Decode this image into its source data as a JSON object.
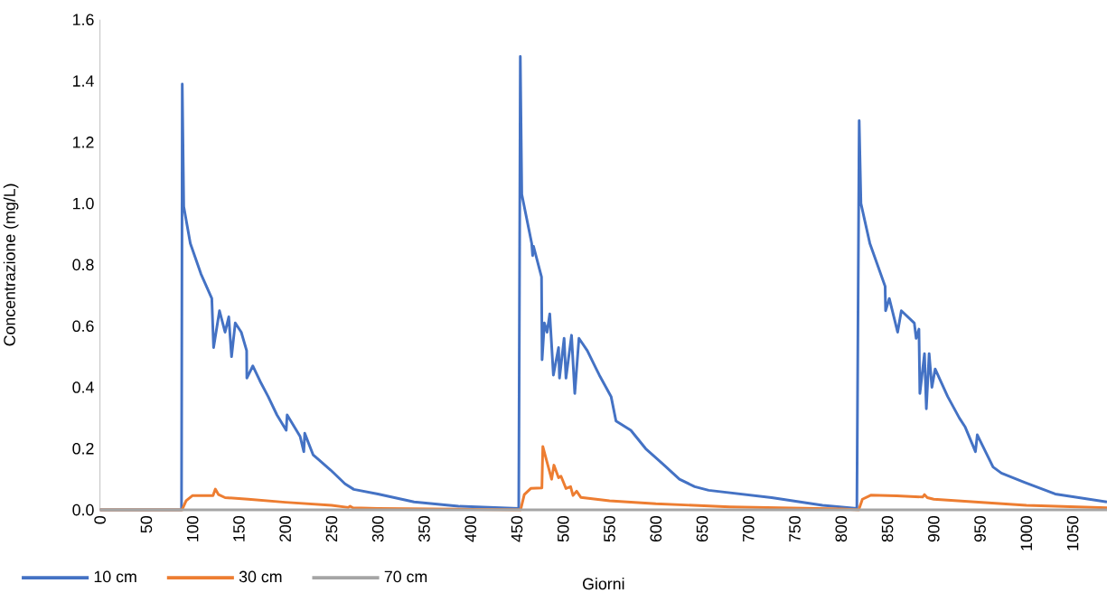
{
  "chart_data": {
    "type": "line",
    "xlabel": "Giorni",
    "ylabel": "Concentrazione (mg/L)",
    "xlim": [
      0,
      1087
    ],
    "ylim": [
      0,
      1.6
    ],
    "xticks": [
      0,
      50,
      100,
      150,
      200,
      250,
      300,
      350,
      400,
      450,
      500,
      550,
      600,
      650,
      700,
      750,
      800,
      850,
      900,
      950,
      1000,
      1050
    ],
    "yticks": [
      {
        "value": 0,
        "label": "0.0"
      },
      {
        "value": 0.2,
        "label": "0.2"
      },
      {
        "value": 0.4,
        "label": "0.4"
      },
      {
        "value": 0.6,
        "label": "0.6"
      },
      {
        "value": 0.8,
        "label": "0.8"
      },
      {
        "value": 1.0,
        "label": "1.0"
      },
      {
        "value": 1.2,
        "label": "1.2"
      },
      {
        "value": 1.4,
        "label": "1.4"
      },
      {
        "value": 1.6,
        "label": "1.6"
      }
    ],
    "grid": false,
    "legend": "bottom left",
    "line_style": "solid",
    "series": [
      {
        "name": "10 cm",
        "color": "#4472c4",
        "x": [
          0,
          88,
          88.8,
          90.4,
          97.5,
          109,
          120.7,
          122.6,
          129,
          135,
          139,
          142,
          146,
          152.5,
          158.3,
          158.5,
          165,
          172.8,
          181.5,
          191,
          201,
          202,
          216,
          220,
          221,
          230,
          249,
          264.5,
          274,
          300,
          339,
          387,
          452,
          453.7,
          455.3,
          466,
          467,
          468,
          476.6,
          477.2,
          479.7,
          482.6,
          485.5,
          489.4,
          495,
          496,
          501,
          503,
          509,
          512.5,
          517,
          526,
          535.7,
          539,
          551.7,
          557,
          573,
          589,
          609,
          625.5,
          642,
          657,
          725,
          780,
          817,
          819.5,
          821.4,
          831,
          847.5,
          848,
          852,
          861,
          865,
          879,
          881,
          884,
          885,
          890,
          892,
          895,
          898,
          901.5,
          915,
          927.6,
          934,
          945,
          947,
          964,
          973,
          998,
          1031,
          1087
        ],
        "values": [
          0,
          0,
          1.39,
          0.99,
          0.87,
          0.77,
          0.69,
          0.53,
          0.65,
          0.58,
          0.63,
          0.5,
          0.61,
          0.58,
          0.52,
          0.43,
          0.47,
          0.42,
          0.37,
          0.31,
          0.26,
          0.31,
          0.24,
          0.19,
          0.25,
          0.18,
          0.13,
          0.085,
          0.067,
          0.052,
          0.026,
          0.012,
          0.005,
          1.48,
          1.03,
          0.87,
          0.83,
          0.86,
          0.76,
          0.49,
          0.61,
          0.58,
          0.64,
          0.44,
          0.53,
          0.43,
          0.56,
          0.43,
          0.57,
          0.38,
          0.56,
          0.52,
          0.46,
          0.44,
          0.37,
          0.29,
          0.26,
          0.2,
          0.146,
          0.1,
          0.076,
          0.064,
          0.04,
          0.015,
          0.005,
          1.27,
          1.0,
          0.87,
          0.73,
          0.65,
          0.69,
          0.58,
          0.65,
          0.61,
          0.56,
          0.59,
          0.38,
          0.51,
          0.33,
          0.51,
          0.4,
          0.46,
          0.37,
          0.3,
          0.27,
          0.19,
          0.245,
          0.14,
          0.12,
          0.09,
          0.052,
          0.026
        ]
      },
      {
        "name": "30 cm",
        "color": "#ed7d31",
        "x": [
          0,
          88.5,
          93,
          100,
          122,
          124.5,
          128,
          135,
          160,
          200,
          250,
          268,
          270,
          273,
          300,
          400,
          454,
          458,
          465,
          477,
          478,
          487.5,
          490,
          495,
          497.6,
          503,
          508,
          510.6,
          514.5,
          519,
          550,
          600,
          680,
          800,
          819,
          823,
          832,
          860,
          880,
          888,
          890,
          893,
          900,
          950,
          1000,
          1087
        ],
        "values": [
          0,
          0,
          0.03,
          0.047,
          0.047,
          0.068,
          0.05,
          0.04,
          0.035,
          0.025,
          0.015,
          0.008,
          0.012,
          0.007,
          0.005,
          0.002,
          0,
          0.05,
          0.07,
          0.072,
          0.207,
          0.1,
          0.146,
          0.105,
          0.11,
          0.07,
          0.076,
          0.047,
          0.061,
          0.041,
          0.03,
          0.02,
          0.01,
          0.003,
          0,
          0.035,
          0.048,
          0.046,
          0.043,
          0.042,
          0.05,
          0.04,
          0.035,
          0.025,
          0.015,
          0.007
        ]
      },
      {
        "name": "70 cm",
        "color": "#a5a5a5",
        "x": [
          0,
          1087
        ],
        "values": [
          0,
          0
        ]
      }
    ]
  }
}
